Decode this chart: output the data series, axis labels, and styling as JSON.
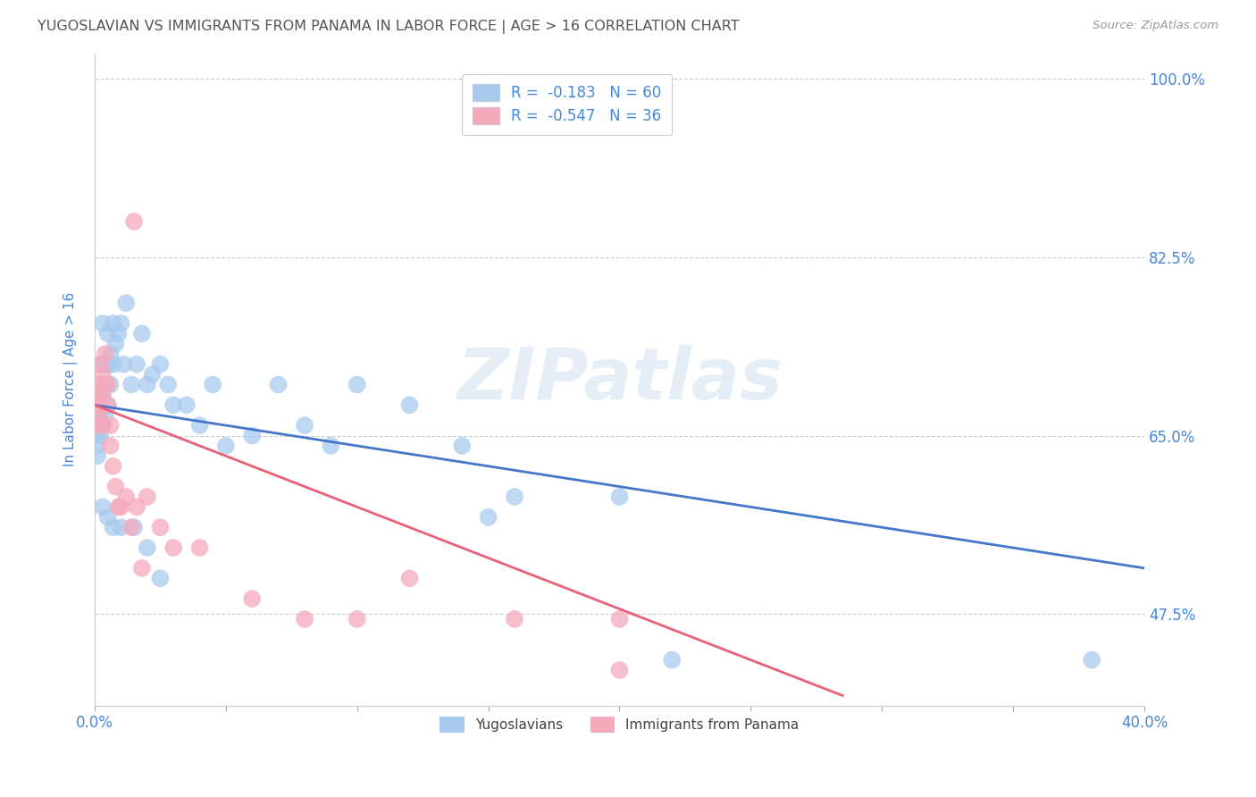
{
  "title": "YUGOSLAVIAN VS IMMIGRANTS FROM PANAMA IN LABOR FORCE | AGE > 16 CORRELATION CHART",
  "source": "Source: ZipAtlas.com",
  "ylabel": "In Labor Force | Age > 16",
  "xlim": [
    0.0,
    0.4
  ],
  "ylim": [
    0.385,
    1.025
  ],
  "yticks": [
    0.475,
    0.65,
    0.825,
    1.0
  ],
  "ytick_labels": [
    "47.5%",
    "65.0%",
    "82.5%",
    "100.0%"
  ],
  "xticks": [
    0.0,
    0.05,
    0.1,
    0.15,
    0.2,
    0.25,
    0.3,
    0.35,
    0.4
  ],
  "xtick_labels": [
    "0.0%",
    "",
    "",
    "",
    "",
    "",
    "",
    "",
    "40.0%"
  ],
  "blue_color": "#A8CAEE",
  "pink_color": "#F5AABB",
  "blue_line_color": "#4477CC",
  "pink_line_color": "#E8607A",
  "tick_label_color": "#4488DD",
  "title_color": "#555555",
  "watermark": "ZIPatlas",
  "legend_label_blue": "R =  -0.183   N = 60",
  "legend_label_pink": "R =  -0.547   N = 36",
  "legend_bottom_blue": "Yugoslavians",
  "legend_bottom_pink": "Immigrants from Panama",
  "blue_line_x": [
    0.0,
    0.4
  ],
  "blue_line_y": [
    0.68,
    0.52
  ],
  "pink_line_x": [
    0.0,
    0.285
  ],
  "pink_line_y": [
    0.68,
    0.395
  ],
  "blue_x": [
    0.001,
    0.001,
    0.001,
    0.001,
    0.001,
    0.002,
    0.002,
    0.002,
    0.002,
    0.002,
    0.003,
    0.003,
    0.003,
    0.003,
    0.004,
    0.004,
    0.004,
    0.005,
    0.005,
    0.005,
    0.006,
    0.006,
    0.007,
    0.007,
    0.008,
    0.009,
    0.01,
    0.011,
    0.012,
    0.014,
    0.016,
    0.018,
    0.02,
    0.022,
    0.025,
    0.028,
    0.03,
    0.035,
    0.04,
    0.045,
    0.05,
    0.06,
    0.07,
    0.08,
    0.09,
    0.1,
    0.12,
    0.14,
    0.16,
    0.2,
    0.003,
    0.005,
    0.007,
    0.01,
    0.015,
    0.02,
    0.025,
    0.15,
    0.22,
    0.38
  ],
  "blue_y": [
    0.67,
    0.66,
    0.65,
    0.64,
    0.63,
    0.69,
    0.68,
    0.67,
    0.66,
    0.65,
    0.76,
    0.72,
    0.69,
    0.66,
    0.72,
    0.7,
    0.67,
    0.75,
    0.72,
    0.68,
    0.73,
    0.7,
    0.76,
    0.72,
    0.74,
    0.75,
    0.76,
    0.72,
    0.78,
    0.7,
    0.72,
    0.75,
    0.7,
    0.71,
    0.72,
    0.7,
    0.68,
    0.68,
    0.66,
    0.7,
    0.64,
    0.65,
    0.7,
    0.66,
    0.64,
    0.7,
    0.68,
    0.64,
    0.59,
    0.59,
    0.58,
    0.57,
    0.56,
    0.56,
    0.56,
    0.54,
    0.51,
    0.57,
    0.43,
    0.43
  ],
  "pink_x": [
    0.001,
    0.001,
    0.001,
    0.001,
    0.002,
    0.002,
    0.002,
    0.003,
    0.003,
    0.003,
    0.004,
    0.004,
    0.005,
    0.005,
    0.006,
    0.006,
    0.007,
    0.008,
    0.009,
    0.01,
    0.012,
    0.014,
    0.016,
    0.018,
    0.02,
    0.025,
    0.03,
    0.04,
    0.06,
    0.08,
    0.1,
    0.12,
    0.16,
    0.2,
    0.015,
    0.2
  ],
  "pink_y": [
    0.69,
    0.68,
    0.67,
    0.66,
    0.72,
    0.7,
    0.68,
    0.71,
    0.69,
    0.66,
    0.73,
    0.7,
    0.7,
    0.68,
    0.66,
    0.64,
    0.62,
    0.6,
    0.58,
    0.58,
    0.59,
    0.56,
    0.58,
    0.52,
    0.59,
    0.56,
    0.54,
    0.54,
    0.49,
    0.47,
    0.47,
    0.51,
    0.47,
    0.42,
    0.86,
    0.47
  ]
}
